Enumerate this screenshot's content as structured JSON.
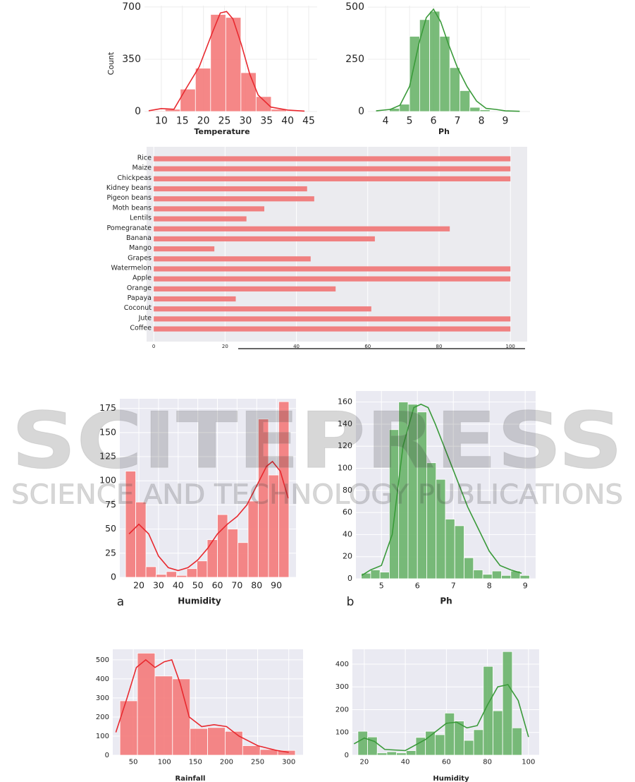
{
  "watermark": {
    "title": "SCITEPRESS",
    "subtitle": "SCIENCE AND TECHNOLOGY PUBLICATIONS"
  },
  "chart_data": [
    {
      "type": "histogram",
      "xlabel": "Temperature",
      "ylabel": "Count",
      "color": "#f47a7a",
      "line_color": "#e8292f",
      "background": "#ffffff",
      "grid": true,
      "bins": [
        7.3,
        10.9,
        14.5,
        18.1,
        21.7,
        25.3,
        28.9,
        32.5,
        36.1,
        39.7,
        43.3
      ],
      "values": [
        5,
        15,
        150,
        290,
        650,
        630,
        260,
        100,
        15,
        5
      ],
      "kde": {
        "x": [
          7,
          10,
          13,
          16,
          19,
          22,
          24,
          25.5,
          27,
          29,
          31,
          33,
          36,
          40,
          44
        ],
        "values": [
          5,
          20,
          15,
          160,
          300,
          520,
          660,
          670,
          620,
          450,
          250,
          110,
          30,
          10,
          3
        ]
      },
      "xlim": [
        6,
        47
      ],
      "ylim": [
        0,
        709
      ],
      "xticks": [
        10,
        15,
        20,
        25,
        30,
        35,
        40,
        45
      ],
      "yticks": [
        0,
        350,
        700
      ]
    },
    {
      "type": "histogram",
      "xlabel": "Ph",
      "color": "#6ab46a",
      "line_color": "#3a9a3a",
      "background": "#ffffff",
      "grid": true,
      "bins": [
        4.16,
        4.58,
        5.0,
        5.42,
        5.84,
        6.26,
        6.68,
        7.1,
        7.52,
        7.94,
        8.36
      ],
      "values": [
        15,
        35,
        360,
        440,
        480,
        360,
        210,
        100,
        20,
        8
      ],
      "kde": {
        "x": [
          3.6,
          4.2,
          4.6,
          5.0,
          5.4,
          5.7,
          6.0,
          6.3,
          6.6,
          7.0,
          7.4,
          7.8,
          8.2,
          8.6,
          9.0,
          9.6
        ],
        "values": [
          3,
          10,
          30,
          120,
          330,
          450,
          490,
          430,
          330,
          210,
          120,
          50,
          15,
          10,
          3,
          1
        ]
      },
      "xlim": [
        3.26,
        10.03
      ],
      "ylim": [
        0,
        507
      ],
      "xticks": [
        4,
        5,
        6,
        7,
        8,
        9
      ],
      "yticks": [
        0,
        250,
        500
      ]
    },
    {
      "type": "barh",
      "color": "#f08080",
      "background": "#ebebef",
      "grid": true,
      "categories": [
        "Rice",
        "Maize",
        "Chickpeas",
        "Kidney beans",
        "Pigeon beans",
        "Moth beans",
        "Lentils",
        "Pomegranate",
        "Banana",
        "Mango",
        "Grapes",
        "Watermelon",
        "Apple",
        "Orange",
        "Papaya",
        "Coconut",
        "Jute",
        "Coffee"
      ],
      "values": [
        100,
        100,
        100,
        43,
        45,
        31,
        26,
        83,
        62,
        17,
        44,
        100,
        100,
        51,
        23,
        61,
        100,
        100
      ],
      "xlim": [
        -2,
        104.7
      ],
      "xticks": [
        0,
        20,
        40,
        60,
        80,
        100
      ]
    },
    {
      "type": "histogram",
      "xlabel": "Humidity",
      "panel_label": "a",
      "color": "#f47a7a",
      "line_color": "#e8292f",
      "background": "#eaeaf2",
      "grid": true,
      "bins": [
        13.2,
        18.4,
        23.6,
        28.8,
        34.0,
        39.2,
        44.4,
        49.6,
        54.8,
        60.0,
        65.2,
        70.4,
        75.6,
        80.8,
        86.0,
        91.2,
        96.4
      ],
      "values": [
        110,
        78,
        11,
        3,
        6,
        2,
        9,
        17,
        39,
        65,
        50,
        36,
        79,
        164,
        106,
        182
      ],
      "kde": {
        "x": [
          15,
          20,
          25,
          30,
          35,
          40,
          45,
          50,
          55,
          60,
          65,
          70,
          75,
          80,
          85,
          88,
          92,
          96
        ],
        "values": [
          45,
          55,
          45,
          22,
          10,
          7,
          10,
          18,
          30,
          45,
          55,
          63,
          75,
          95,
          115,
          120,
          110,
          82
        ]
      },
      "xlim": [
        10.3,
        100
      ],
      "ylim": [
        0,
        185
      ],
      "xticks": [
        20,
        30,
        40,
        50,
        60,
        70,
        80,
        90
      ],
      "yticks": [
        0,
        25,
        50,
        75,
        100,
        125,
        150,
        175
      ]
    },
    {
      "type": "histogram",
      "xlabel": "Ph",
      "panel_label": "b",
      "color": "#6ab46a",
      "line_color": "#3a9a3a",
      "background": "#eaeaf2",
      "grid": true,
      "bins": [
        4.44,
        4.7,
        4.96,
        5.22,
        5.48,
        5.74,
        6.0,
        6.26,
        6.52,
        6.78,
        7.04,
        7.3,
        7.56,
        7.82,
        8.08,
        8.34,
        8.6,
        8.86,
        9.12
      ],
      "values": [
        5,
        8,
        6,
        135,
        160,
        158,
        151,
        105,
        90,
        54,
        48,
        19,
        8,
        4,
        7,
        3,
        7,
        3
      ],
      "kde": {
        "x": [
          4.45,
          4.7,
          5.0,
          5.3,
          5.6,
          5.9,
          6.1,
          6.3,
          6.5,
          6.8,
          7.1,
          7.4,
          7.7,
          8.0,
          8.3,
          8.6,
          8.9
        ],
        "values": [
          3,
          8,
          12,
          40,
          120,
          155,
          158,
          155,
          140,
          115,
          90,
          65,
          45,
          25,
          12,
          8,
          5
        ]
      },
      "xlim": [
        4.29,
        9.29
      ],
      "ylim": [
        0,
        170
      ],
      "xticks": [
        5,
        6,
        7,
        8,
        9
      ],
      "yticks": [
        0,
        20,
        40,
        60,
        80,
        100,
        120,
        140,
        160
      ]
    },
    {
      "type": "histogram",
      "xlabel": "Rainfall",
      "color": "#f47a7a",
      "line_color": "#e8292f",
      "background": "#eaeaf2",
      "grid": true,
      "bins": [
        28.5,
        56.7,
        84.9,
        113.1,
        141.3,
        169.5,
        197.7,
        225.9,
        254.1,
        282.3,
        310.5
      ],
      "values": [
        285,
        535,
        415,
        400,
        140,
        145,
        125,
        50,
        30,
        25
      ],
      "kde": {
        "x": [
          22,
          40,
          55,
          70,
          85,
          100,
          112,
          125,
          140,
          160,
          180,
          200,
          220,
          250,
          280,
          300
        ],
        "values": [
          120,
          300,
          460,
          500,
          460,
          490,
          500,
          380,
          200,
          150,
          160,
          150,
          100,
          50,
          25,
          15
        ]
      },
      "xlim": [
        17,
        323
      ],
      "ylim": [
        0,
        555
      ],
      "xticks": [
        50,
        100,
        150,
        200,
        250,
        300
      ],
      "yticks": [
        0,
        100,
        200,
        300,
        400,
        500
      ]
    },
    {
      "type": "histogram",
      "xlabel": "Humidity",
      "color": "#6ab46a",
      "line_color": "#3a9a3a",
      "background": "#eaeaf2",
      "grid": true,
      "bins": [
        16.9,
        21.6,
        26.3,
        31.0,
        35.7,
        40.4,
        45.1,
        49.8,
        54.5,
        59.2,
        63.9,
        68.6,
        73.3,
        78.0,
        82.7,
        87.4,
        92.1,
        96.8
      ],
      "values": [
        105,
        80,
        10,
        15,
        10,
        20,
        78,
        105,
        90,
        185,
        150,
        65,
        112,
        390,
        195,
        455,
        120
      ],
      "kde": {
        "x": [
          15,
          20,
          25,
          30,
          40,
          50,
          60,
          65,
          70,
          75,
          80,
          85,
          90,
          95,
          100
        ],
        "values": [
          50,
          75,
          60,
          25,
          20,
          70,
          140,
          145,
          120,
          130,
          220,
          300,
          310,
          240,
          80
        ]
      },
      "xlim": [
        14.2,
        105.2
      ],
      "ylim": [
        0,
        465
      ],
      "xticks": [
        20,
        40,
        60,
        80,
        100
      ],
      "yticks": [
        0,
        100,
        200,
        300,
        400
      ]
    }
  ]
}
